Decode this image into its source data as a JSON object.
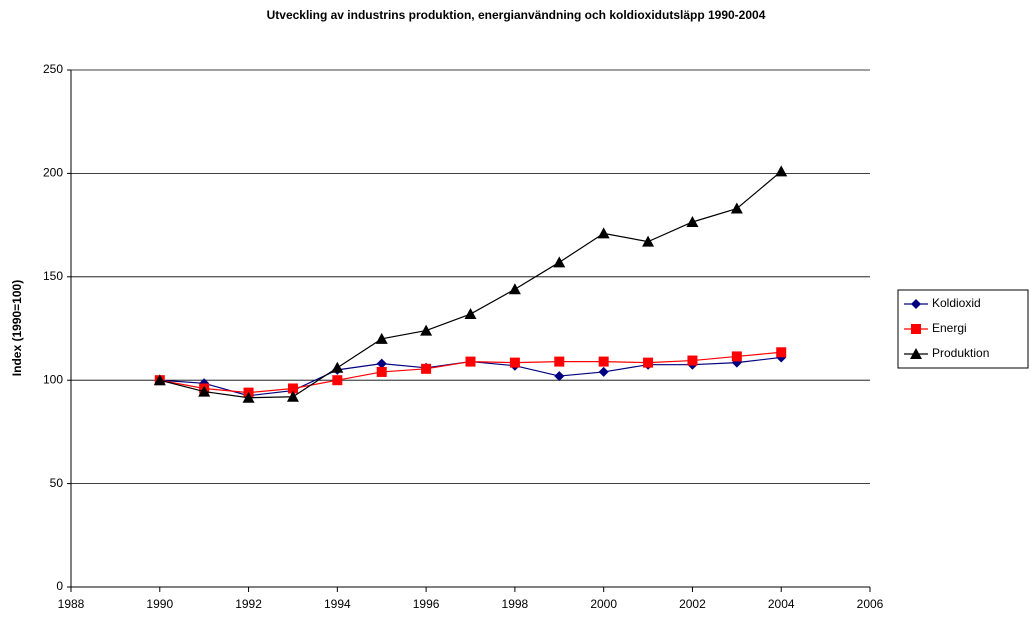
{
  "chart_data": {
    "type": "line",
    "title": "Utveckling av industrins produktion, energianvändning och koldioxidutsläpp 1990-2004",
    "y_label": "Index (1990=100)",
    "x": [
      1990,
      1991,
      1992,
      1993,
      1994,
      1995,
      1996,
      1997,
      1998,
      1999,
      2000,
      2001,
      2002,
      2003,
      2004
    ],
    "series": [
      {
        "name": "Koldioxid",
        "color": "#000080",
        "marker": "diamond",
        "values": [
          100,
          98.5,
          92.5,
          95,
          105,
          108,
          106,
          109,
          107,
          102,
          104,
          107.5,
          107.5,
          108.5,
          111
        ]
      },
      {
        "name": "Energi",
        "color": "#ff0000",
        "marker": "square",
        "values": [
          100,
          96,
          94,
          96,
          100,
          104,
          105.5,
          109,
          108.5,
          109,
          109,
          108.5,
          109.5,
          111.5,
          113.5
        ]
      },
      {
        "name": "Produktion",
        "color": "#000000",
        "marker": "triangle",
        "values": [
          100,
          94.5,
          91.5,
          92,
          106,
          120,
          124,
          132,
          144,
          157,
          171,
          167,
          176.5,
          183,
          201
        ]
      }
    ],
    "xlim": [
      1988,
      2006
    ],
    "xticks": [
      1988,
      1990,
      1992,
      1994,
      1996,
      1998,
      2000,
      2002,
      2004,
      2006
    ],
    "ylim": [
      0,
      250
    ],
    "yticks": [
      0,
      50,
      100,
      150,
      200,
      250
    ],
    "grid": true,
    "legend": "right"
  }
}
